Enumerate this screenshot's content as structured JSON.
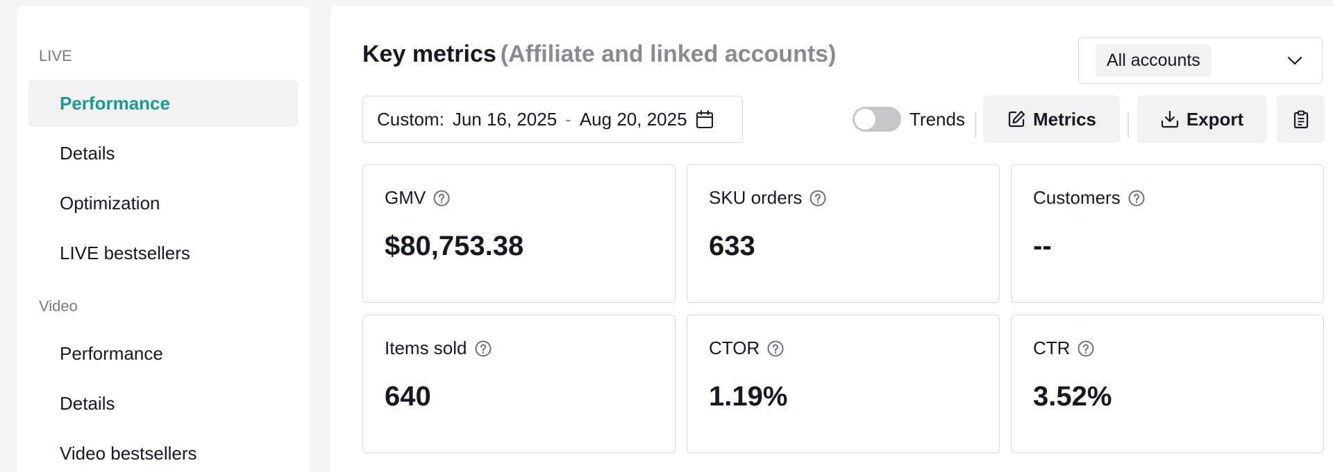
{
  "sidebar": {
    "live_section": "LIVE",
    "live_items": [
      "Performance",
      "Details",
      "Optimization",
      "LIVE bestsellers"
    ],
    "video_section": "Video",
    "video_items": [
      "Performance",
      "Details",
      "Video bestsellers"
    ]
  },
  "header": {
    "title": "Key metrics",
    "subtitle": "(Affiliate and linked accounts)",
    "account_select": "All accounts"
  },
  "toolbar": {
    "date_prefix": "Custom:",
    "date_start": "Jun 16, 2025",
    "date_sep": "-",
    "date_end": "Aug 20, 2025",
    "trends_label": "Trends",
    "metrics_label": "Metrics",
    "export_label": "Export"
  },
  "metrics": [
    {
      "label": "GMV",
      "value": "$80,753.38"
    },
    {
      "label": "SKU orders",
      "value": "633"
    },
    {
      "label": "Customers",
      "value": "--"
    },
    {
      "label": "Items sold",
      "value": "640"
    },
    {
      "label": "CTOR",
      "value": "1.19%"
    },
    {
      "label": "CTR",
      "value": "3.52%"
    }
  ],
  "colors": {
    "accent": "#1a9a96",
    "text": "#161823",
    "muted": "#8a8b91"
  }
}
